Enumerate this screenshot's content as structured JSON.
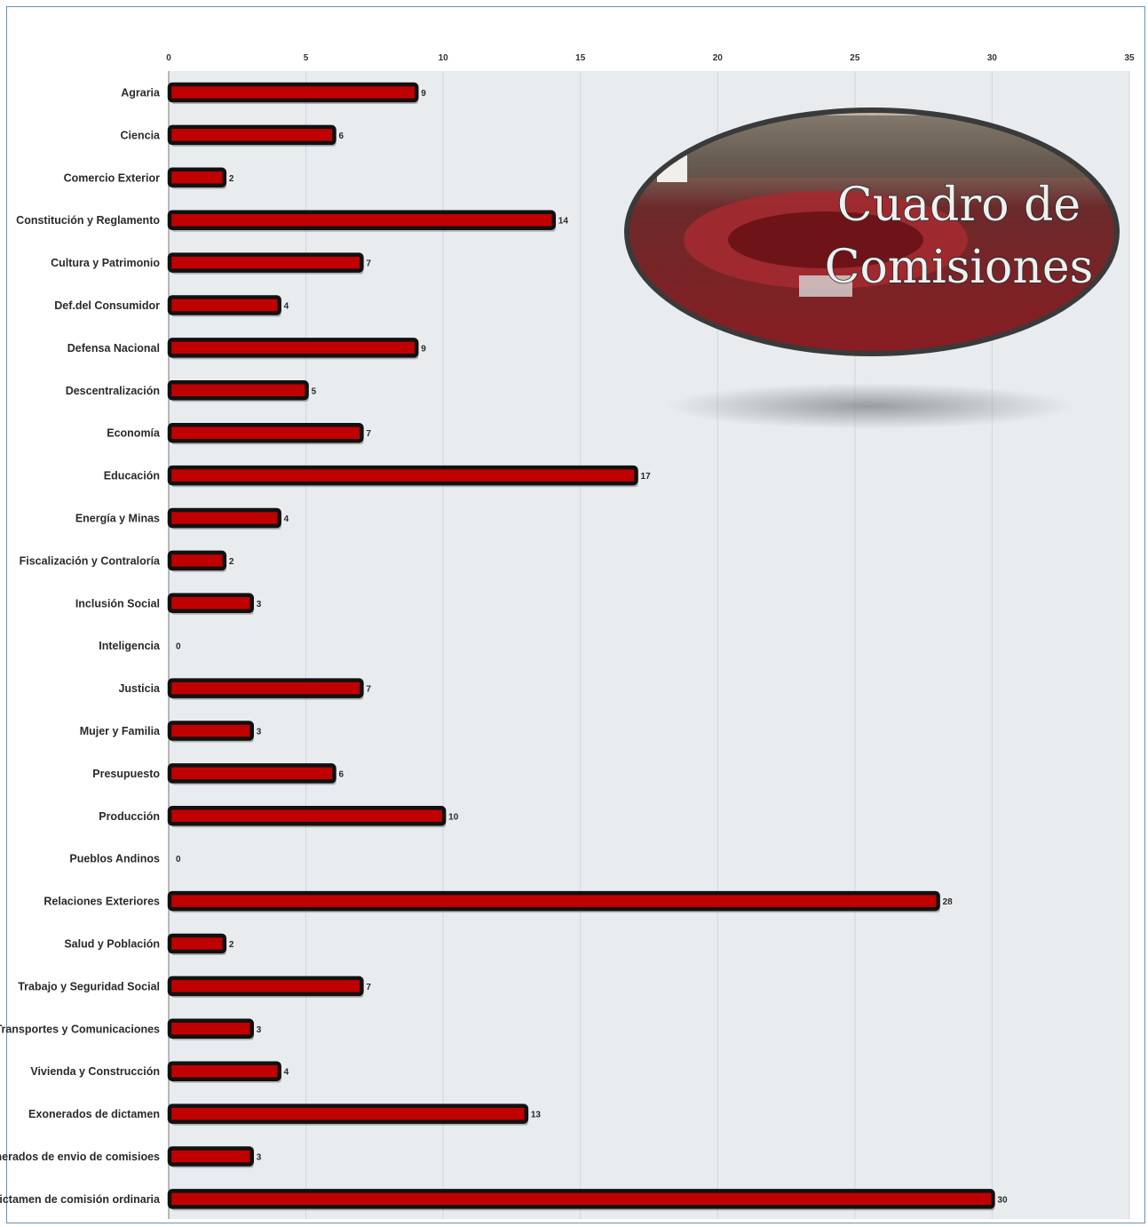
{
  "badge": {
    "line1": "Cuadro de",
    "line2": "Comisiones"
  },
  "colors": {
    "bar_fill": "#c00000",
    "bar_outline": "#111111",
    "plot_background": "#e8ecef",
    "grid": "#cfd6de"
  },
  "chart_data": {
    "type": "bar",
    "orientation": "horizontal",
    "title": "",
    "xlabel": "",
    "ylabel": "",
    "xlim": [
      0,
      35
    ],
    "x_ticks": [
      0,
      5,
      10,
      15,
      20,
      25,
      30,
      35
    ],
    "tick_position": "top",
    "grid": true,
    "categories": [
      "Agraria",
      "Ciencia",
      "Comercio Exterior",
      "Constitución y Reglamento",
      "Cultura y Patrimonio",
      "Def.del Consumidor",
      "Defensa Nacional",
      "Descentralización",
      "Economía",
      "Educación",
      "Energía y Minas",
      "Fiscalización y Contraloría",
      "Inclusión Social",
      "Inteligencia",
      "Justicia",
      "Mujer y Familia",
      "Presupuesto",
      "Producción",
      "Pueblos Andinos",
      "Relaciones Exteriores",
      "Salud y Población",
      "Trabajo y Seguridad Social",
      "Transportes y Comunicaciones",
      "Vivienda y Construcción",
      "Exonerados de dictamen",
      "Exonerados de envio de comisioes",
      "Sin dictamen de comisión ordinaria"
    ],
    "values": [
      9,
      6,
      2,
      14,
      7,
      4,
      9,
      5,
      7,
      17,
      4,
      2,
      3,
      0,
      7,
      3,
      6,
      10,
      0,
      28,
      2,
      7,
      3,
      4,
      13,
      3,
      30
    ]
  }
}
